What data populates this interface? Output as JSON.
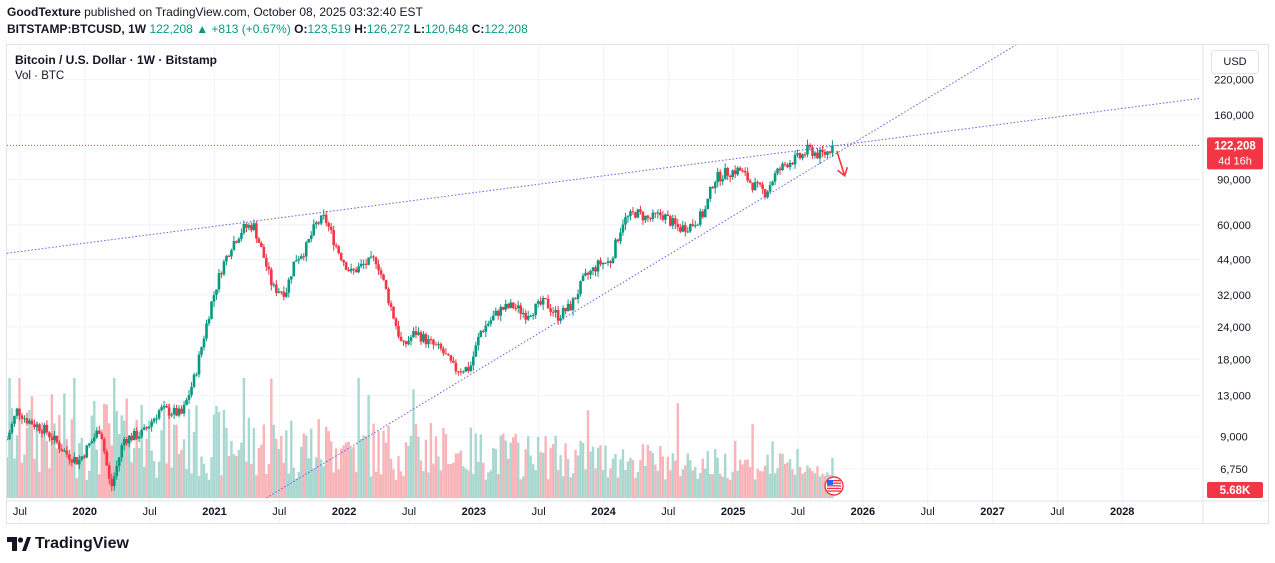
{
  "header": {
    "publisher": "GoodTexture",
    "published_text": "published on TradingView.com, October 08, 2025 03:32:40 EST",
    "symbol": "BITSTAMP:BTCUSD, 1W",
    "last": "122,208",
    "change": "▲ +813 (+0.67%)",
    "o_label": "O:",
    "o": "123,519",
    "h_label": "H:",
    "h": "126,272",
    "l_label": "L:",
    "l": "120,648",
    "c_label": "C:",
    "c": "122,208"
  },
  "legend": {
    "title": "Bitcoin / U.S. Dollar · 1W · Bitstamp",
    "volume": "Vol · BTC"
  },
  "currency": "USD",
  "price_badge": {
    "price": "122,208",
    "countdown": "4d 16h",
    "color": "#f23645"
  },
  "volume_badge": {
    "value": "5.68K",
    "color": "#f23645"
  },
  "brand": "TradingView",
  "colors": {
    "up": "#089981",
    "down": "#f23645",
    "trend": "#6c5ce7",
    "grid": "#f0f3fa",
    "vol_up": "#a8d8cf",
    "vol_down": "#f8b4b8"
  },
  "chart_data": {
    "type": "candlestick",
    "title": "Bitcoin / U.S. Dollar · 1W · Bitstamp",
    "scale": "log",
    "ylim": [
      5200,
      300000
    ],
    "xlim": [
      2019.4,
      2028.6
    ],
    "y_ticks": [
      220000,
      160000,
      90000,
      60000,
      44000,
      32000,
      24000,
      18000,
      13000,
      9000,
      6750
    ],
    "y_tick_labels": [
      "220,000",
      "160,000",
      "90,000",
      "60,000",
      "44,000",
      "32,000",
      "24,000",
      "18,000",
      "13,000",
      "9,000",
      "6,750"
    ],
    "x_ticks": [
      {
        "t": 2019.5,
        "label": "Jul",
        "year": false
      },
      {
        "t": 2020.0,
        "label": "2020",
        "year": true
      },
      {
        "t": 2020.5,
        "label": "Jul",
        "year": false
      },
      {
        "t": 2021.0,
        "label": "2021",
        "year": true
      },
      {
        "t": 2021.5,
        "label": "Jul",
        "year": false
      },
      {
        "t": 2022.0,
        "label": "2022",
        "year": true
      },
      {
        "t": 2022.5,
        "label": "Jul",
        "year": false
      },
      {
        "t": 2023.0,
        "label": "2023",
        "year": true
      },
      {
        "t": 2023.5,
        "label": "Jul",
        "year": false
      },
      {
        "t": 2024.0,
        "label": "2024",
        "year": true
      },
      {
        "t": 2024.5,
        "label": "Jul",
        "year": false
      },
      {
        "t": 2025.0,
        "label": "2025",
        "year": true
      },
      {
        "t": 2025.5,
        "label": "Jul",
        "year": false
      },
      {
        "t": 2026.0,
        "label": "2026",
        "year": true
      },
      {
        "t": 2026.5,
        "label": "Jul",
        "year": false
      },
      {
        "t": 2027.0,
        "label": "2027",
        "year": true
      },
      {
        "t": 2027.5,
        "label": "Jul",
        "year": false
      },
      {
        "t": 2028.0,
        "label": "2028",
        "year": true
      }
    ],
    "price_anchors": [
      [
        2019.4,
        8800
      ],
      [
        2019.48,
        11500
      ],
      [
        2019.55,
        10500
      ],
      [
        2019.7,
        9500
      ],
      [
        2019.85,
        7800
      ],
      [
        2019.95,
        7200
      ],
      [
        2020.05,
        8600
      ],
      [
        2020.12,
        9800
      ],
      [
        2020.2,
        5600
      ],
      [
        2020.3,
        8800
      ],
      [
        2020.45,
        9300
      ],
      [
        2020.58,
        11500
      ],
      [
        2020.75,
        11000
      ],
      [
        2020.85,
        15500
      ],
      [
        2020.97,
        29000
      ],
      [
        2021.05,
        40000
      ],
      [
        2021.13,
        50000
      ],
      [
        2021.22,
        58000
      ],
      [
        2021.3,
        60000
      ],
      [
        2021.38,
        45000
      ],
      [
        2021.45,
        34000
      ],
      [
        2021.55,
        33000
      ],
      [
        2021.62,
        44000
      ],
      [
        2021.7,
        48000
      ],
      [
        2021.78,
        60000
      ],
      [
        2021.85,
        64000
      ],
      [
        2021.95,
        48000
      ],
      [
        2022.05,
        39000
      ],
      [
        2022.15,
        42000
      ],
      [
        2022.25,
        44000
      ],
      [
        2022.35,
        30000
      ],
      [
        2022.45,
        20000
      ],
      [
        2022.55,
        23000
      ],
      [
        2022.65,
        21000
      ],
      [
        2022.75,
        19500
      ],
      [
        2022.85,
        16500
      ],
      [
        2022.97,
        16600
      ],
      [
        2023.05,
        23000
      ],
      [
        2023.2,
        28000
      ],
      [
        2023.3,
        29000
      ],
      [
        2023.4,
        27000
      ],
      [
        2023.55,
        30000
      ],
      [
        2023.65,
        26500
      ],
      [
        2023.75,
        29000
      ],
      [
        2023.85,
        37000
      ],
      [
        2023.97,
        42500
      ],
      [
        2024.05,
        43000
      ],
      [
        2024.15,
        62000
      ],
      [
        2024.25,
        67000
      ],
      [
        2024.35,
        63000
      ],
      [
        2024.45,
        66000
      ],
      [
        2024.58,
        58000
      ],
      [
        2024.68,
        60000
      ],
      [
        2024.78,
        67000
      ],
      [
        2024.85,
        90000
      ],
      [
        2024.95,
        96000
      ],
      [
        2025.05,
        98000
      ],
      [
        2025.15,
        86000
      ],
      [
        2025.25,
        80000
      ],
      [
        2025.33,
        95000
      ],
      [
        2025.42,
        105000
      ],
      [
        2025.52,
        110000
      ],
      [
        2025.58,
        118000
      ],
      [
        2025.66,
        112000
      ],
      [
        2025.72,
        114000
      ],
      [
        2025.77,
        122208
      ]
    ],
    "last_price": 122208,
    "trendlines": [
      {
        "name": "upper-resistance",
        "p1": [
          2019.4,
          46500
        ],
        "p2": [
          2025.8,
          122000
        ],
        "extended": true
      },
      {
        "name": "lower-support",
        "p1": [
          2021.4,
          5200
        ],
        "p2": [
          2025.8,
          114000
        ],
        "extended": true
      }
    ],
    "arrow": {
      "from": [
        2025.8,
        116000
      ],
      "to": [
        2025.86,
        93000
      ],
      "color": "#f23645"
    }
  }
}
